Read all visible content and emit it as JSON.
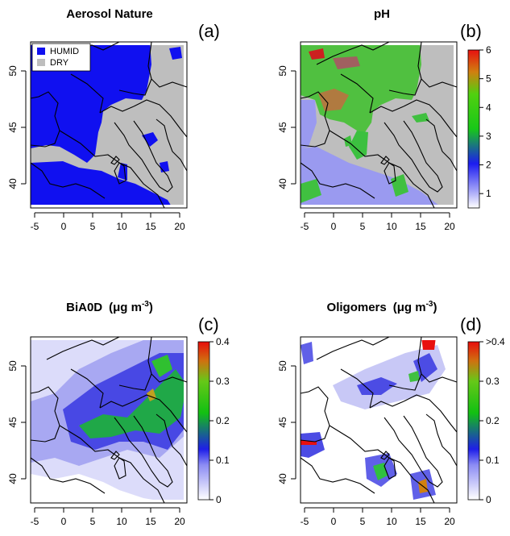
{
  "panels": [
    {
      "title": "Aerosol Nature",
      "letter": "(a)",
      "type": "categorical-map",
      "legend": [
        {
          "label": "HUMID",
          "color": "#1010f0"
        },
        {
          "label": "DRY",
          "color": "#bebebe"
        }
      ],
      "x_ticks": [
        "-5",
        "0",
        "5",
        "10",
        "15",
        "20"
      ],
      "y_ticks": [
        "50",
        "45",
        "40"
      ]
    },
    {
      "title": "pH",
      "letter": "(b)",
      "type": "continuous-map",
      "colorbar": {
        "labels": [
          "6",
          "5",
          "4",
          "3",
          "2",
          "1"
        ],
        "range": [
          0.5,
          6
        ]
      },
      "x_ticks": [
        "-5",
        "0",
        "5",
        "10",
        "15",
        "20"
      ],
      "y_ticks": [
        "50",
        "45",
        "40"
      ]
    },
    {
      "title": "BiA0D",
      "title_unit": "(μg m",
      "title_exp": "-3",
      "title_close": ")",
      "letter": "(c)",
      "type": "continuous-map",
      "colorbar": {
        "labels": [
          "0.4",
          "0.3",
          "0.2",
          "0.1",
          "0"
        ],
        "range": [
          0,
          0.4
        ]
      },
      "x_ticks": [
        "-5",
        "0",
        "5",
        "10",
        "15",
        "20"
      ],
      "y_ticks": [
        "50",
        "45",
        "40"
      ]
    },
    {
      "title": "Oligomers",
      "title_unit": "(μg m",
      "title_exp": "-3",
      "title_close": ")",
      "letter": "(d)",
      "type": "continuous-map",
      "colorbar": {
        "labels": [
          ">0.4",
          "0.3",
          "0.2",
          "0.1",
          "0"
        ],
        "range": [
          0,
          0.4
        ]
      },
      "x_ticks": [
        "-5",
        "0",
        "5",
        "10",
        "15",
        "20"
      ],
      "y_ticks": [
        "50",
        "45",
        "40"
      ]
    }
  ],
  "chart_data": [
    {
      "type": "heatmap",
      "title": "Aerosol Nature",
      "categories": [
        "HUMID",
        "DRY"
      ],
      "xlim": [
        -7,
        21
      ],
      "ylim": [
        37.5,
        54.5
      ],
      "x_ticks": [
        -5,
        0,
        5,
        10,
        15,
        20
      ],
      "y_ticks": [
        40,
        45,
        50
      ]
    },
    {
      "type": "heatmap",
      "title": "pH",
      "xlim": [
        -7,
        21
      ],
      "ylim": [
        37.5,
        54.5
      ],
      "colorbar_ticks": [
        1,
        2,
        3,
        4,
        5,
        6
      ],
      "x_ticks": [
        -5,
        0,
        5,
        10,
        15,
        20
      ],
      "y_ticks": [
        40,
        45,
        50
      ]
    },
    {
      "type": "heatmap",
      "title": "BiA0D (μg m-3)",
      "xlim": [
        -7,
        21
      ],
      "ylim": [
        37.5,
        54.5
      ],
      "colorbar_ticks": [
        0,
        0.1,
        0.2,
        0.3,
        0.4
      ],
      "x_ticks": [
        -5,
        0,
        5,
        10,
        15,
        20
      ],
      "y_ticks": [
        40,
        45,
        50
      ]
    },
    {
      "type": "heatmap",
      "title": "Oligomers (μg m-3)",
      "xlim": [
        -7,
        21
      ],
      "ylim": [
        37.5,
        54.5
      ],
      "colorbar_ticks": [
        0,
        0.1,
        0.2,
        0.3,
        ">0.4"
      ],
      "x_ticks": [
        -5,
        0,
        5,
        10,
        15,
        20
      ],
      "y_ticks": [
        40,
        45,
        50
      ]
    }
  ]
}
